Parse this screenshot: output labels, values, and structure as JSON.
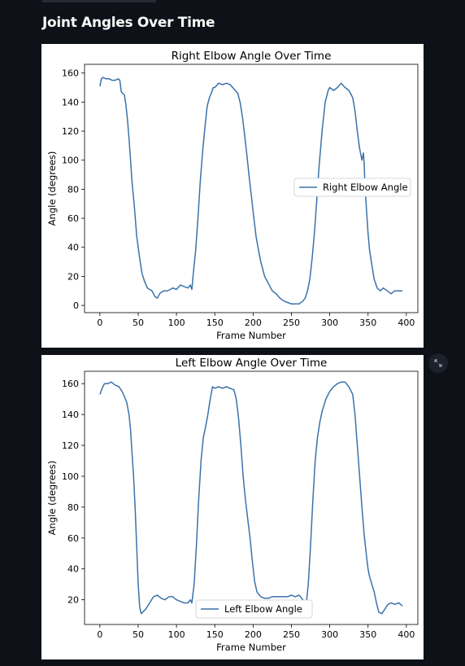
{
  "page": {
    "title": "Joint Angles Over Time"
  },
  "chart_data": [
    {
      "type": "line",
      "title": "Right Elbow Angle Over Time",
      "xlabel": "Frame Number",
      "ylabel": "Angle (degrees)",
      "xlim": [
        -20,
        415
      ],
      "ylim": [
        -5,
        166
      ],
      "xticks": [
        0,
        50,
        100,
        150,
        200,
        250,
        300,
        350,
        400
      ],
      "yticks": [
        0,
        20,
        40,
        60,
        80,
        100,
        120,
        140,
        160
      ],
      "legend_position": "center-right",
      "grid": false,
      "series": [
        {
          "name": "Right Elbow Angle",
          "color": "#3b72a8",
          "x": [
            0,
            2,
            4,
            8,
            12,
            16,
            20,
            24,
            26,
            28,
            30,
            32,
            34,
            36,
            38,
            40,
            42,
            45,
            48,
            52,
            55,
            58,
            62,
            65,
            68,
            72,
            75,
            78,
            80,
            84,
            88,
            92,
            95,
            100,
            105,
            110,
            115,
            118,
            120,
            122,
            125,
            128,
            131,
            134,
            137,
            140,
            143,
            146,
            148,
            150,
            155,
            160,
            165,
            170,
            175,
            180,
            183,
            186,
            189,
            192,
            195,
            198,
            201,
            204,
            207,
            210,
            215,
            220,
            225,
            230,
            235,
            240,
            245,
            250,
            255,
            260,
            265,
            268,
            271,
            274,
            277,
            280,
            283,
            286,
            290,
            294,
            298,
            300,
            305,
            310,
            315,
            320,
            325,
            330,
            333,
            336,
            339,
            342,
            344,
            345,
            346,
            348,
            350,
            352,
            355,
            358,
            362,
            366,
            370,
            375,
            380,
            385,
            390,
            395
          ],
          "y": [
            151,
            156,
            157,
            156,
            156,
            155,
            155,
            156,
            155,
            147,
            146,
            145,
            138,
            128,
            115,
            100,
            85,
            68,
            48,
            32,
            22,
            17,
            12,
            11,
            10,
            6,
            5,
            8,
            9,
            10,
            10,
            11,
            12,
            11,
            14,
            13,
            12,
            14,
            11,
            22,
            38,
            60,
            85,
            105,
            122,
            137,
            143,
            147,
            150,
            150,
            153,
            152,
            153,
            152,
            149,
            146,
            140,
            130,
            117,
            103,
            88,
            74,
            60,
            47,
            38,
            30,
            20,
            15,
            10,
            8,
            5,
            3,
            2,
            1,
            1,
            1,
            3,
            5,
            10,
            18,
            32,
            50,
            72,
            95,
            120,
            140,
            148,
            150,
            148,
            150,
            153,
            150,
            148,
            143,
            134,
            120,
            108,
            100,
            105,
            97,
            82,
            65,
            50,
            38,
            28,
            18,
            12,
            10,
            12,
            10,
            8,
            10,
            10,
            10
          ]
        }
      ]
    },
    {
      "type": "line",
      "title": "Left Elbow Angle Over Time",
      "xlabel": "Frame Number",
      "ylabel": "Angle (degrees)",
      "xlim": [
        -20,
        415
      ],
      "ylim": [
        4,
        168
      ],
      "xticks": [
        0,
        50,
        100,
        150,
        200,
        250,
        300,
        350,
        400
      ],
      "yticks": [
        20,
        40,
        60,
        80,
        100,
        120,
        140,
        160
      ],
      "legend_position": "lower-center",
      "grid": false,
      "series": [
        {
          "name": "Left Elbow Angle",
          "color": "#3b72a8",
          "x": [
            0,
            3,
            6,
            10,
            15,
            20,
            25,
            30,
            35,
            38,
            40,
            42,
            44,
            46,
            48,
            50,
            52,
            54,
            56,
            60,
            65,
            70,
            75,
            80,
            85,
            90,
            95,
            100,
            105,
            110,
            115,
            118,
            120,
            123,
            126,
            129,
            132,
            135,
            138,
            141,
            144,
            147,
            150,
            155,
            160,
            165,
            170,
            175,
            178,
            181,
            184,
            187,
            190,
            193,
            196,
            199,
            202,
            205,
            210,
            215,
            220,
            225,
            230,
            235,
            240,
            245,
            250,
            255,
            260,
            265,
            268,
            270,
            272,
            275,
            278,
            281,
            284,
            287,
            290,
            295,
            300,
            305,
            310,
            315,
            320,
            325,
            330,
            333,
            336,
            339,
            342,
            345,
            348,
            350,
            352,
            355,
            358,
            361,
            364,
            368,
            372,
            376,
            380,
            385,
            390,
            395
          ],
          "y": [
            153,
            157,
            160,
            160,
            161,
            159,
            158,
            154,
            148,
            140,
            130,
            115,
            100,
            80,
            55,
            30,
            15,
            11,
            12,
            14,
            18,
            22,
            23,
            21,
            20,
            22,
            22,
            20,
            19,
            18,
            18,
            20,
            18,
            30,
            55,
            85,
            110,
            125,
            132,
            140,
            150,
            158,
            157,
            158,
            157,
            158,
            157,
            156,
            150,
            138,
            120,
            100,
            85,
            72,
            60,
            45,
            32,
            25,
            22,
            21,
            21,
            22,
            22,
            22,
            22,
            22,
            23,
            22,
            23,
            20,
            18,
            20,
            30,
            55,
            85,
            110,
            125,
            135,
            142,
            150,
            155,
            158,
            160,
            161,
            161,
            158,
            153,
            140,
            120,
            100,
            80,
            62,
            48,
            40,
            35,
            30,
            25,
            18,
            12,
            11,
            14,
            17,
            18,
            17,
            18,
            16
          ]
        }
      ]
    }
  ],
  "icons": {
    "expand": "expand-icon"
  }
}
